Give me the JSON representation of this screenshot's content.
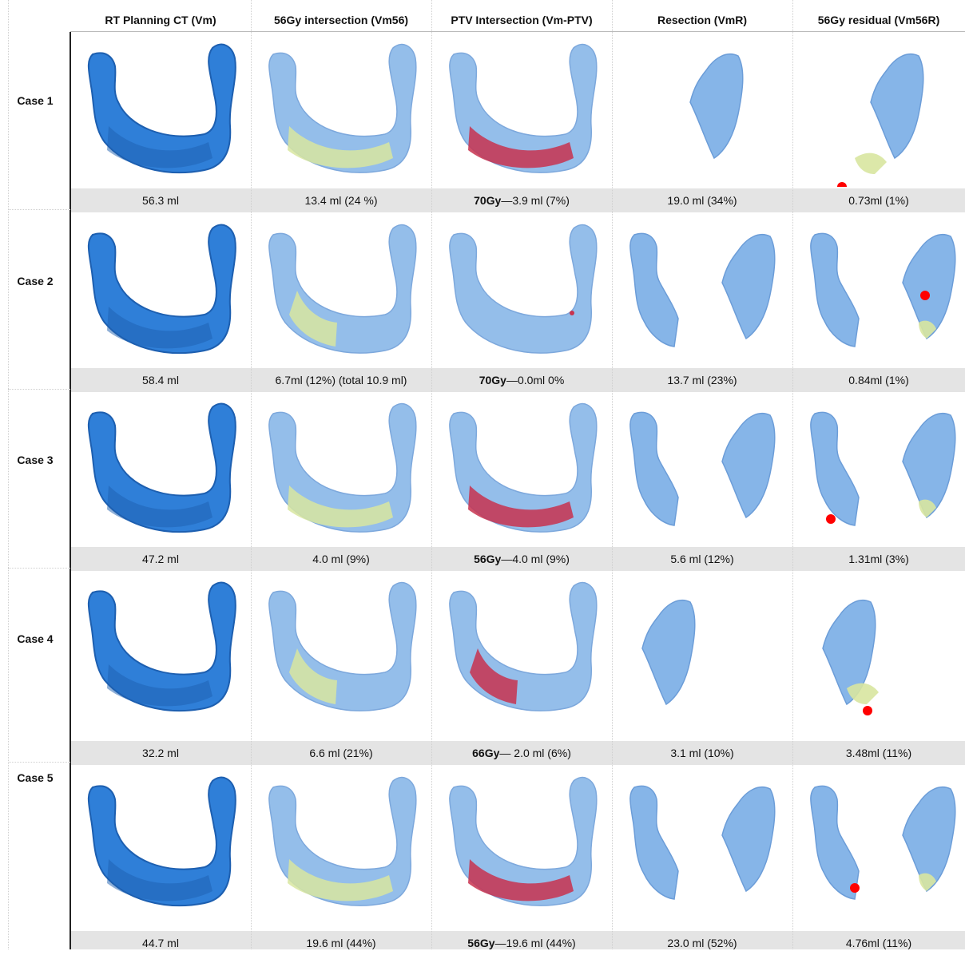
{
  "columns": [
    "RT Planning CT (Vm)",
    "56Gy intersection (Vm56)",
    "PTV Intersection (Vm-PTV)",
    "Resection (VmR)",
    "56Gy residual (Vm56R)"
  ],
  "cases": [
    {
      "label": "Case 1",
      "values": [
        {
          "text": "56.3 ml"
        },
        {
          "text": "13.4 ml (24 %)"
        },
        {
          "bold": "70Gy",
          "text": "—3.9 ml (7%)"
        },
        {
          "text": "19.0 ml (34%)"
        },
        {
          "text": "0.73ml (1%)"
        }
      ]
    },
    {
      "label": "Case 2",
      "values": [
        {
          "text": "58.4 ml"
        },
        {
          "text": "6.7ml (12%) (total 10.9 ml)"
        },
        {
          "bold": "70Gy",
          "text": "—0.0ml 0%"
        },
        {
          "text": "13.7 ml (23%)"
        },
        {
          "text": "0.84ml (1%)"
        }
      ]
    },
    {
      "label": "Case 3",
      "values": [
        {
          "text": "47.2 ml"
        },
        {
          "text": "4.0 ml (9%)"
        },
        {
          "bold": "56Gy",
          "text": "—4.0 ml (9%)"
        },
        {
          "text": "5.6 ml (12%)"
        },
        {
          "text": "1.31ml (3%)"
        }
      ]
    },
    {
      "label": "Case 4",
      "values": [
        {
          "text": "32.2 ml"
        },
        {
          "text": "6.6 ml (21%)"
        },
        {
          "bold": "66Gy",
          "text": "— 2.0 ml (6%)"
        },
        {
          "text": "3.1 ml (10%)"
        },
        {
          "text": "3.48ml (11%)"
        }
      ]
    },
    {
      "label": "Case 5",
      "values": [
        {
          "text": "44.7 ml"
        },
        {
          "text": "19.6 ml (44%)"
        },
        {
          "bold": "56Gy",
          "text": "—19.6 ml (44%)"
        },
        {
          "text": "23.0 ml (52%)"
        },
        {
          "text": "4.76ml (11%)"
        }
      ]
    }
  ],
  "colors": {
    "bone_solid": "#2f7fd8",
    "bone_solid_dark": "#1d5fb0",
    "bone_translucent": "#7aaee6",
    "dose56_overlay": "#d8e6a0",
    "ptv_overlay": "#c8334f",
    "residual_marker": "#ff0000",
    "value_row_bg": "#e4e4e4"
  },
  "icons": [
    "mandible-3d-render",
    "residual-point-marker"
  ]
}
